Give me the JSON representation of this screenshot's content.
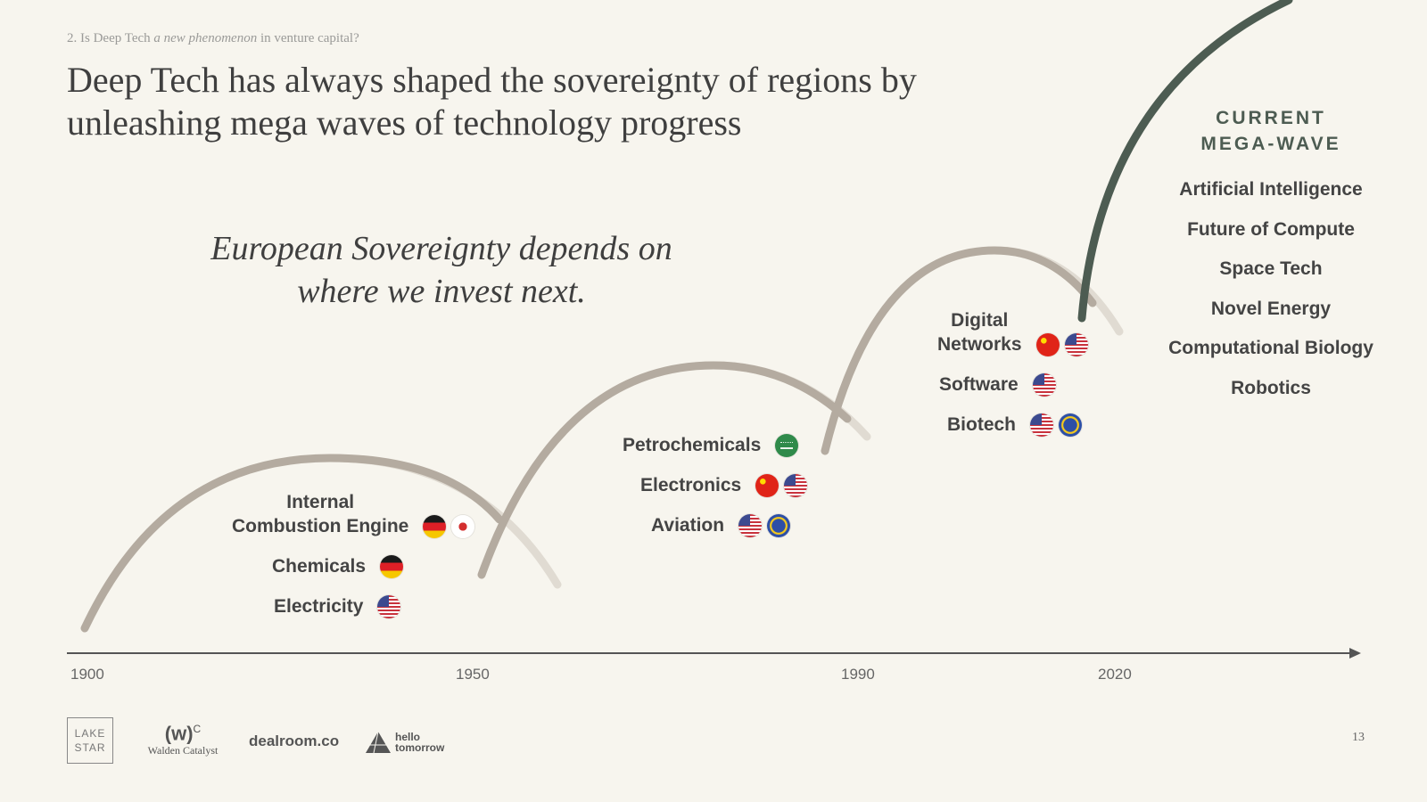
{
  "header": {
    "kicker_prefix": "2. Is Deep Tech",
    "kicker_emphasis": "a new phenomenon",
    "kicker_suffix": "in venture capital?",
    "title": "Deep Tech has always shaped the sovereignty of regions by unleashing mega waves of technology progress"
  },
  "quote": {
    "line1": "European Sovereignty depends on",
    "line2": "where we invest next."
  },
  "colors": {
    "background": "#f7f5ee",
    "past_wave": "#b4aba0",
    "current_wave": "#4d5c52",
    "text": "#3f3f3f"
  },
  "waves": [
    {
      "technologies": [
        {
          "label_lines": [
            "Internal",
            "Combustion Engine"
          ],
          "flags": [
            "germany-flag",
            "japan-flag"
          ]
        },
        {
          "label_lines": [
            "Chemicals"
          ],
          "flags": [
            "germany-flag"
          ]
        },
        {
          "label_lines": [
            "Electricity"
          ],
          "flags": [
            "usa-flag"
          ]
        }
      ]
    },
    {
      "technologies": [
        {
          "label_lines": [
            "Petrochemicals"
          ],
          "flags": [
            "saudi-arabia-flag"
          ]
        },
        {
          "label_lines": [
            "Electronics"
          ],
          "flags": [
            "china-flag",
            "usa-flag"
          ]
        },
        {
          "label_lines": [
            "Aviation"
          ],
          "flags": [
            "usa-flag",
            "eu-flag"
          ]
        }
      ]
    },
    {
      "technologies": [
        {
          "label_lines": [
            "Digital",
            "Networks"
          ],
          "flags": [
            "china-flag",
            "usa-flag"
          ]
        },
        {
          "label_lines": [
            "Software"
          ],
          "flags": [
            "usa-flag"
          ]
        },
        {
          "label_lines": [
            "Biotech"
          ],
          "flags": [
            "usa-flag",
            "eu-flag"
          ]
        }
      ]
    }
  ],
  "current_wave": {
    "heading_line1": "CURRENT",
    "heading_line2": "MEGA-WAVE",
    "items": [
      "Artificial Intelligence",
      "Future of Compute",
      "Space Tech",
      "Novel Energy",
      "Computational Biology",
      "Robotics"
    ]
  },
  "axis": {
    "ticks": [
      "1900",
      "1950",
      "1990",
      "2020"
    ]
  },
  "footer": {
    "logo_lake_star_line1": "LAKE",
    "logo_lake_star_line2": "STAR",
    "logo_walden_mark": "(w)",
    "logo_walden_sup": "C",
    "logo_walden_name": "Walden Catalyst",
    "logo_dealroom": "dealroom.co",
    "logo_hello_line1": "hello",
    "logo_hello_line2": "tomorrow",
    "page_number": "13"
  }
}
